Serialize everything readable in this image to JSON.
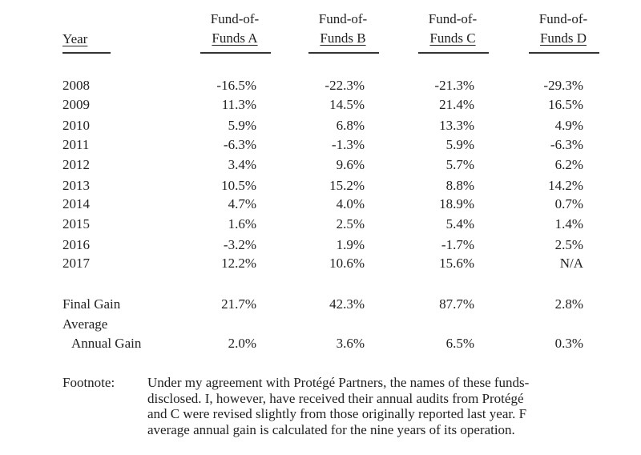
{
  "table": {
    "year_header": "Year",
    "fund_headers": [
      {
        "line1": "Fund-of-",
        "line2": "Funds A"
      },
      {
        "line1": "Fund-of-",
        "line2": "Funds B"
      },
      {
        "line1": "Fund-of-",
        "line2": "Funds C"
      },
      {
        "line1": "Fund-of-",
        "line2": "Funds D"
      }
    ],
    "rows": [
      {
        "year": "2008",
        "values": [
          "-16.5%",
          "-22.3%",
          "-21.3%",
          "-29.3%"
        ]
      },
      {
        "year": "2009",
        "values": [
          "11.3%",
          "14.5%",
          "21.4%",
          "16.5%"
        ]
      },
      {
        "year": "2010",
        "values": [
          "5.9%",
          "6.8%",
          "13.3%",
          "4.9%"
        ]
      },
      {
        "year": "2011",
        "values": [
          "-6.3%",
          "-1.3%",
          "5.9%",
          "-6.3%"
        ]
      },
      {
        "year": "2012",
        "values": [
          "3.4%",
          "9.6%",
          "5.7%",
          "6.2%"
        ]
      },
      {
        "year": "2013",
        "values": [
          "10.5%",
          "15.2%",
          "8.8%",
          "14.2%"
        ]
      },
      {
        "year": "2014",
        "values": [
          "4.7%",
          "4.0%",
          "18.9%",
          "0.7%"
        ]
      },
      {
        "year": "2015",
        "values": [
          "1.6%",
          "2.5%",
          "5.4%",
          "1.4%"
        ]
      },
      {
        "year": "2016",
        "values": [
          "-3.2%",
          "1.9%",
          "-1.7%",
          "2.5%"
        ]
      },
      {
        "year": "2017",
        "values": [
          "12.2%",
          "10.6%",
          "15.6%",
          "N/A"
        ]
      }
    ],
    "final_gain": {
      "label": "Final Gain",
      "values": [
        "21.7%",
        "42.3%",
        "87.7%",
        "2.8%"
      ]
    },
    "average_annual_gain": {
      "label_line1": "Average",
      "label_line2": "Annual Gain",
      "values": [
        "2.0%",
        "3.6%",
        "6.5%",
        "0.3%"
      ]
    }
  },
  "footnote": {
    "label": "Footnote:",
    "lines": [
      "Under my agreement with Protégé Partners, the names of these funds-",
      "disclosed. I, however, have received their annual audits from Protégé",
      "and C were revised slightly from those originally reported last year. F",
      "average annual gain is calculated for the nine years of its operation."
    ]
  }
}
